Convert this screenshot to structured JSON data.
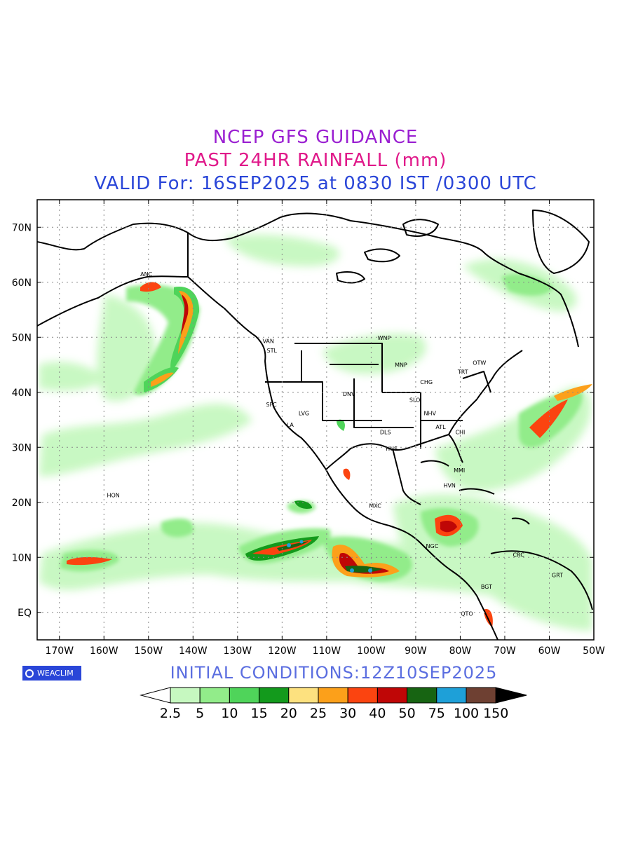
{
  "header": {
    "line1": "NCEP GFS GUIDANCE",
    "line2": "PAST 24HR RAINFALL (mm)",
    "line3": "VALID For: 16SEP2025 at 0830 IST /0300 UTC",
    "colors": {
      "line1": "#9a1fd1",
      "line2": "#e0198a",
      "line3": "#2a46d8"
    }
  },
  "footer": {
    "logo": "WEACLIM",
    "initial_conditions": "INITIAL  CONDITIONS:12Z10SEP2025",
    "initial_color": "#5b6ee0"
  },
  "map": {
    "lon_range": [
      -175,
      -50
    ],
    "lat_range": [
      -5,
      75
    ],
    "lon_ticks": [
      {
        "lon": -170,
        "label": "170W"
      },
      {
        "lon": -160,
        "label": "160W"
      },
      {
        "lon": -150,
        "label": "150W"
      },
      {
        "lon": -140,
        "label": "140W"
      },
      {
        "lon": -130,
        "label": "130W"
      },
      {
        "lon": -120,
        "label": "120W"
      },
      {
        "lon": -110,
        "label": "110W"
      },
      {
        "lon": -100,
        "label": "100W"
      },
      {
        "lon": -90,
        "label": "90W"
      },
      {
        "lon": -80,
        "label": "80W"
      },
      {
        "lon": -70,
        "label": "70W"
      },
      {
        "lon": -60,
        "label": "60W"
      },
      {
        "lon": -50,
        "label": "50W"
      }
    ],
    "lat_ticks": [
      {
        "lat": 70,
        "label": "70N"
      },
      {
        "lat": 60,
        "label": "60N"
      },
      {
        "lat": 50,
        "label": "50N"
      },
      {
        "lat": 40,
        "label": "40N"
      },
      {
        "lat": 30,
        "label": "30N"
      },
      {
        "lat": 20,
        "label": "20N"
      },
      {
        "lat": 10,
        "label": "10N"
      },
      {
        "lat": 0,
        "label": "EQ"
      }
    ],
    "cities": [
      {
        "name": "ANC",
        "lon": -150.5,
        "lat": 61.5
      },
      {
        "name": "VAN",
        "lon": -123.1,
        "lat": 49.3
      },
      {
        "name": "STL",
        "lon": -122.3,
        "lat": 47.6
      },
      {
        "name": "WNP",
        "lon": -97.1,
        "lat": 49.9
      },
      {
        "name": "MNP",
        "lon": -93.3,
        "lat": 45.0
      },
      {
        "name": "OTW",
        "lon": -75.7,
        "lat": 45.4
      },
      {
        "name": "TRT",
        "lon": -79.4,
        "lat": 43.7
      },
      {
        "name": "CHG",
        "lon": -87.6,
        "lat": 41.9
      },
      {
        "name": "DNV",
        "lon": -105.0,
        "lat": 39.7
      },
      {
        "name": "SFC",
        "lon": -122.4,
        "lat": 37.8
      },
      {
        "name": "SLO",
        "lon": -90.2,
        "lat": 38.6
      },
      {
        "name": "NHV",
        "lon": -86.8,
        "lat": 36.2
      },
      {
        "name": "LVG",
        "lon": -115.1,
        "lat": 36.2
      },
      {
        "name": "LA",
        "lon": -118.2,
        "lat": 34.1
      },
      {
        "name": "ATL",
        "lon": -84.4,
        "lat": 33.7
      },
      {
        "name": "CHI",
        "lon": -80.0,
        "lat": 32.8
      },
      {
        "name": "DLS",
        "lon": -96.8,
        "lat": 32.8
      },
      {
        "name": "HUS",
        "lon": -95.4,
        "lat": 29.8
      },
      {
        "name": "MMI",
        "lon": -80.2,
        "lat": 25.8
      },
      {
        "name": "HVN",
        "lon": -82.4,
        "lat": 23.1
      },
      {
        "name": "HON",
        "lon": -157.9,
        "lat": 21.3
      },
      {
        "name": "MXC",
        "lon": -99.1,
        "lat": 19.4
      },
      {
        "name": "NGC",
        "lon": -86.3,
        "lat": 12.1
      },
      {
        "name": "CRC",
        "lon": -66.9,
        "lat": 10.5
      },
      {
        "name": "GRT",
        "lon": -58.2,
        "lat": 6.8
      },
      {
        "name": "BGT",
        "lon": -74.1,
        "lat": 4.7
      },
      {
        "name": "QTO",
        "lon": -78.5,
        "lat": -0.2
      }
    ]
  },
  "legend": {
    "levels": [
      "2.5",
      "5",
      "10",
      "15",
      "20",
      "25",
      "30",
      "40",
      "50",
      "75",
      "100",
      "150"
    ],
    "colors": [
      "#ffffff",
      "#c6f8c0",
      "#92ec8a",
      "#4fd45a",
      "#139a1c",
      "#fde17f",
      "#fca01a",
      "#fb4410",
      "#bf0606",
      "#176412",
      "#1ea0d8",
      "#6e4032",
      "#000000"
    ]
  }
}
